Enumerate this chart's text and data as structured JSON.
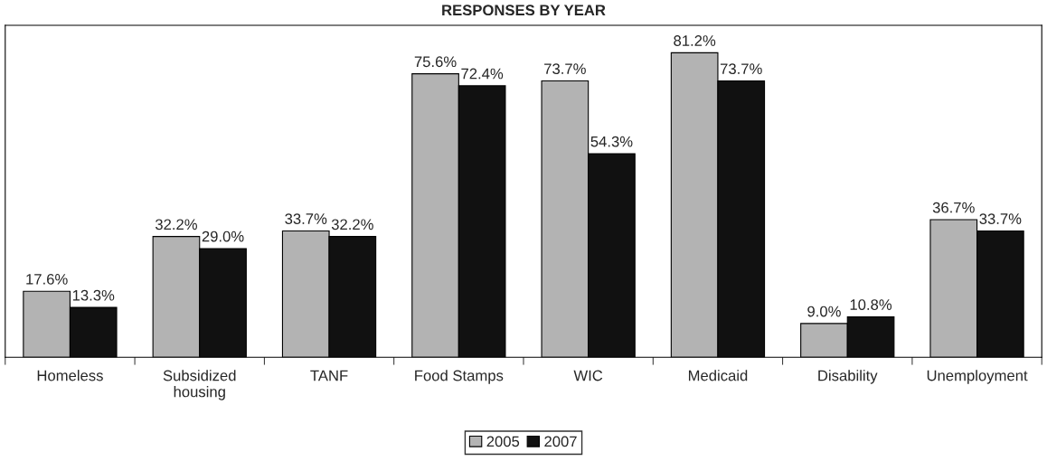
{
  "chart_data": {
    "type": "bar",
    "title": "RESPONSES BY YEAR",
    "categories": [
      "Homeless",
      "Subsidized\nhousing",
      "TANF",
      "Food Stamps",
      "WIC",
      "Medicaid",
      "Disability",
      "Unemployment"
    ],
    "series": [
      {
        "name": "2005",
        "color": "#b3b3b3",
        "values": [
          17.6,
          32.2,
          33.7,
          75.6,
          73.7,
          81.2,
          9.0,
          36.7
        ],
        "value_labels": [
          "17.6%",
          "32.2%",
          "33.7%",
          "75.6%",
          "73.7%",
          "81.2%",
          "9.0%",
          "36.7%"
        ]
      },
      {
        "name": "2007",
        "color": "#111111",
        "values": [
          13.3,
          29.0,
          32.2,
          72.4,
          54.3,
          73.7,
          10.8,
          33.7
        ],
        "value_labels": [
          "13.3%",
          "29.0%",
          "32.2%",
          "72.4%",
          "54.3%",
          "73.7%",
          "10.8%",
          "33.7%"
        ]
      }
    ],
    "legend": "bottom",
    "grid": false,
    "tick_labels": "x"
  }
}
